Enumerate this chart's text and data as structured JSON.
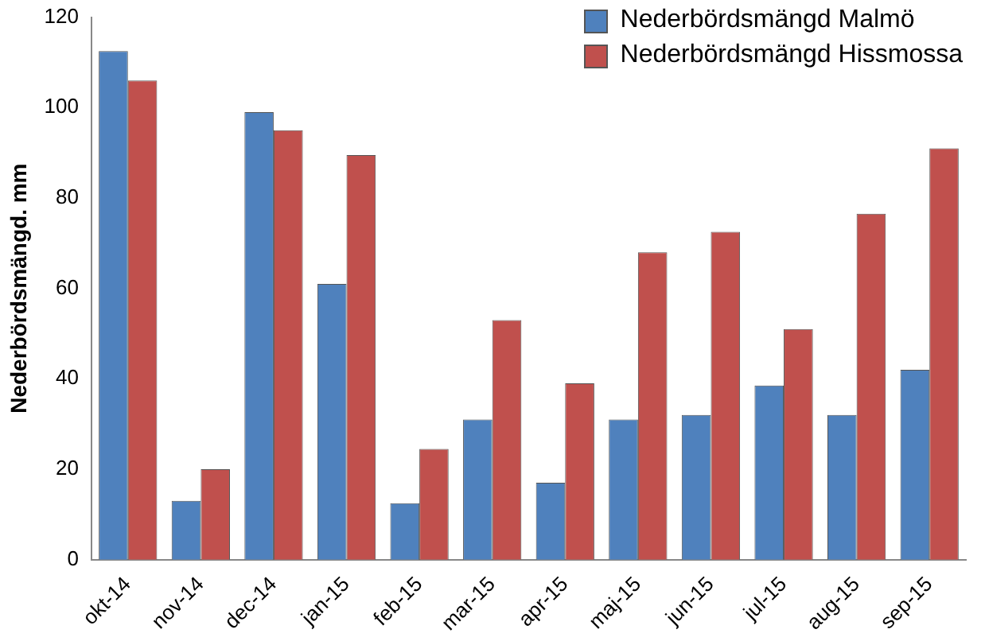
{
  "chart_data": {
    "type": "bar",
    "ylabel": "Nederbördsmängd. mm",
    "categories": [
      "okt-14",
      "nov-14",
      "dec-14",
      "jan-15",
      "feb-15",
      "mar-15",
      "apr-15",
      "maj-15",
      "jun-15",
      "jul-15",
      "aug-15",
      "sep-15"
    ],
    "series": [
      {
        "name": "Nederbördsmängd Malmö",
        "color": "#4f81bd",
        "values": [
          112.5,
          13,
          99,
          61,
          12.5,
          31,
          17,
          31,
          32,
          38.5,
          32,
          42
        ]
      },
      {
        "name": "Nederbördsmängd Hissmossa",
        "color": "#c0504d",
        "values": [
          106,
          20,
          95,
          89.5,
          24.5,
          53,
          39,
          68,
          72.5,
          51,
          76.5,
          91
        ]
      }
    ],
    "ylim": [
      0,
      120
    ],
    "yticks": [
      0,
      20,
      40,
      60,
      80,
      100,
      120
    ],
    "grid": false,
    "legend": "top right"
  }
}
